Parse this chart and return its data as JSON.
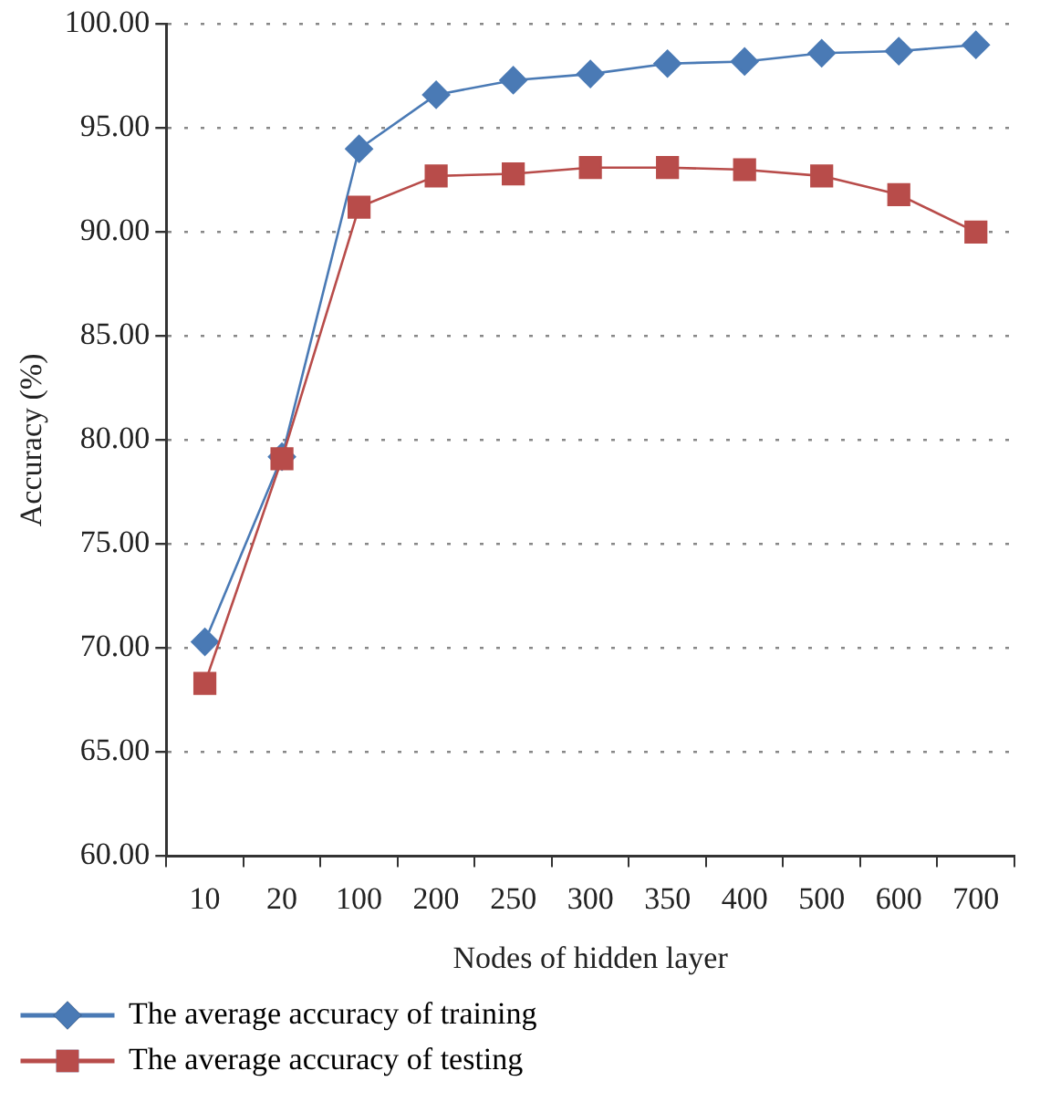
{
  "chart_data": {
    "type": "line",
    "xlabel": "Nodes of hidden layer",
    "ylabel": "Accuracy (%)",
    "categories": [
      "10",
      "20",
      "100",
      "200",
      "250",
      "300",
      "350",
      "400",
      "500",
      "600",
      "700"
    ],
    "series": [
      {
        "name": "The average accuracy of training",
        "color": "#4a7ab5",
        "marker": "diamond",
        "values": [
          70.3,
          79.2,
          94.0,
          96.6,
          97.3,
          97.6,
          98.1,
          98.2,
          98.6,
          98.7,
          99.0
        ]
      },
      {
        "name": "The average accuracy of testing",
        "color": "#b84c4a",
        "marker": "square",
        "values": [
          68.3,
          79.1,
          91.2,
          92.7,
          92.8,
          93.1,
          93.1,
          93.0,
          92.7,
          91.8,
          90.0
        ]
      }
    ],
    "ylim": [
      60,
      100
    ],
    "yticks": [
      {
        "value": 60,
        "label": "60.00"
      },
      {
        "value": 65,
        "label": "65.00"
      },
      {
        "value": 70,
        "label": "70.00"
      },
      {
        "value": 75,
        "label": "75.00"
      },
      {
        "value": 80,
        "label": "80.00"
      },
      {
        "value": 85,
        "label": "85.00"
      },
      {
        "value": 90,
        "label": "90.00"
      },
      {
        "value": 95,
        "label": "95.00"
      },
      {
        "value": 100,
        "label": "100.00"
      }
    ],
    "grid": "y",
    "legend": "bottom",
    "line_style": "solid"
  }
}
